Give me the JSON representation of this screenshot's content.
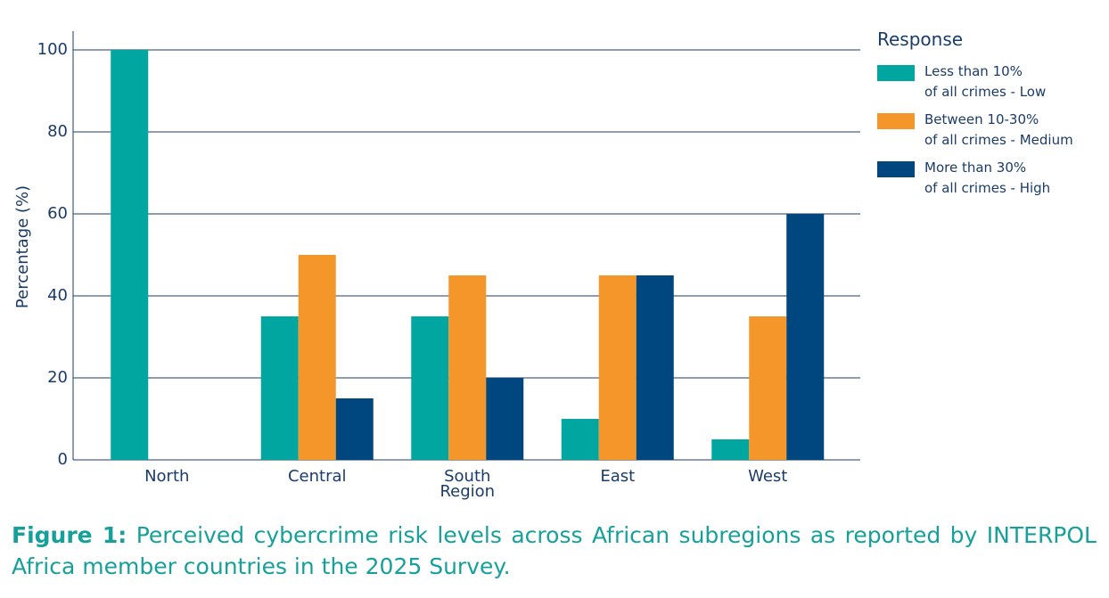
{
  "chart_data": {
    "type": "bar",
    "categories": [
      "North",
      "Central",
      "South\nRegion",
      "East",
      "West"
    ],
    "series": [
      {
        "name": "Less than 10%\nof all crimes - Low",
        "color": "#00a69f",
        "values": [
          100,
          35,
          35,
          10,
          5
        ]
      },
      {
        "name": "Between 10-30%\nof all crimes - Medium",
        "color": "#f5962b",
        "values": [
          0,
          50,
          45,
          45,
          35
        ]
      },
      {
        "name": "More than 30%\nof all crimes - High",
        "color": "#00467f",
        "values": [
          0,
          15,
          20,
          45,
          60
        ]
      }
    ],
    "y_label": "Percentage (%)",
    "ylim": [
      0,
      100
    ],
    "yticks": [
      0,
      20,
      40,
      60,
      80,
      100
    ],
    "grid": true,
    "legend_title": "Response",
    "caption_label": "Figure 1:",
    "caption": "Perceived cybercrime risk levels across African subregions as reported by INTERPOL Africa member countries in the 2025 Survey."
  }
}
